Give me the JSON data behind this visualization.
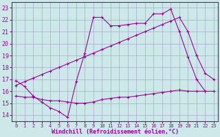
{
  "xlabel": "Windchill (Refroidissement éolien,°C)",
  "background_color": "#cde8e8",
  "grid_color": "#aaaacc",
  "line_color": "#990099",
  "x_ticks": [
    0,
    1,
    2,
    3,
    4,
    5,
    6,
    7,
    8,
    9,
    10,
    11,
    12,
    13,
    14,
    15,
    16,
    17,
    18,
    19,
    20,
    21,
    22,
    23
  ],
  "y_ticks": [
    14,
    15,
    16,
    17,
    18,
    19,
    20,
    21,
    22,
    23
  ],
  "xlim": [
    -0.5,
    23.5
  ],
  "ylim": [
    13.5,
    23.5
  ],
  "series": [
    {
      "x": [
        0,
        1,
        2,
        3,
        4,
        5,
        6,
        7,
        8,
        9,
        10,
        11,
        12,
        13,
        14,
        15,
        16,
        17,
        18,
        19,
        20,
        21,
        22
      ],
      "y": [
        16.9,
        16.4,
        15.6,
        15.1,
        14.6,
        14.3,
        13.8,
        16.8,
        19.2,
        22.2,
        22.2,
        21.5,
        21.5,
        21.6,
        21.7,
        21.7,
        22.5,
        22.5,
        22.9,
        21.0,
        18.9,
        17.0,
        16.0
      ]
    },
    {
      "x": [
        0,
        1,
        2,
        3,
        4,
        5,
        6,
        7,
        8,
        9,
        10,
        11,
        12,
        13,
        14,
        15,
        16,
        17,
        18,
        19,
        20,
        21,
        22,
        23
      ],
      "y": [
        16.5,
        16.8,
        17.1,
        17.4,
        17.7,
        18.0,
        18.3,
        18.6,
        18.9,
        19.2,
        19.5,
        19.8,
        20.1,
        20.4,
        20.7,
        21.0,
        21.3,
        21.6,
        21.9,
        22.2,
        21.0,
        19.0,
        17.5,
        17.0
      ]
    },
    {
      "x": [
        0,
        1,
        2,
        3,
        4,
        5,
        6,
        7,
        8,
        9,
        10,
        11,
        12,
        13,
        14,
        15,
        16,
        17,
        18,
        19,
        20,
        21,
        22,
        23
      ],
      "y": [
        15.6,
        15.5,
        15.5,
        15.3,
        15.2,
        15.2,
        15.1,
        15.0,
        15.0,
        15.1,
        15.3,
        15.4,
        15.5,
        15.5,
        15.6,
        15.7,
        15.8,
        15.9,
        16.0,
        16.1,
        16.0,
        16.0,
        16.0,
        16.0
      ]
    }
  ]
}
